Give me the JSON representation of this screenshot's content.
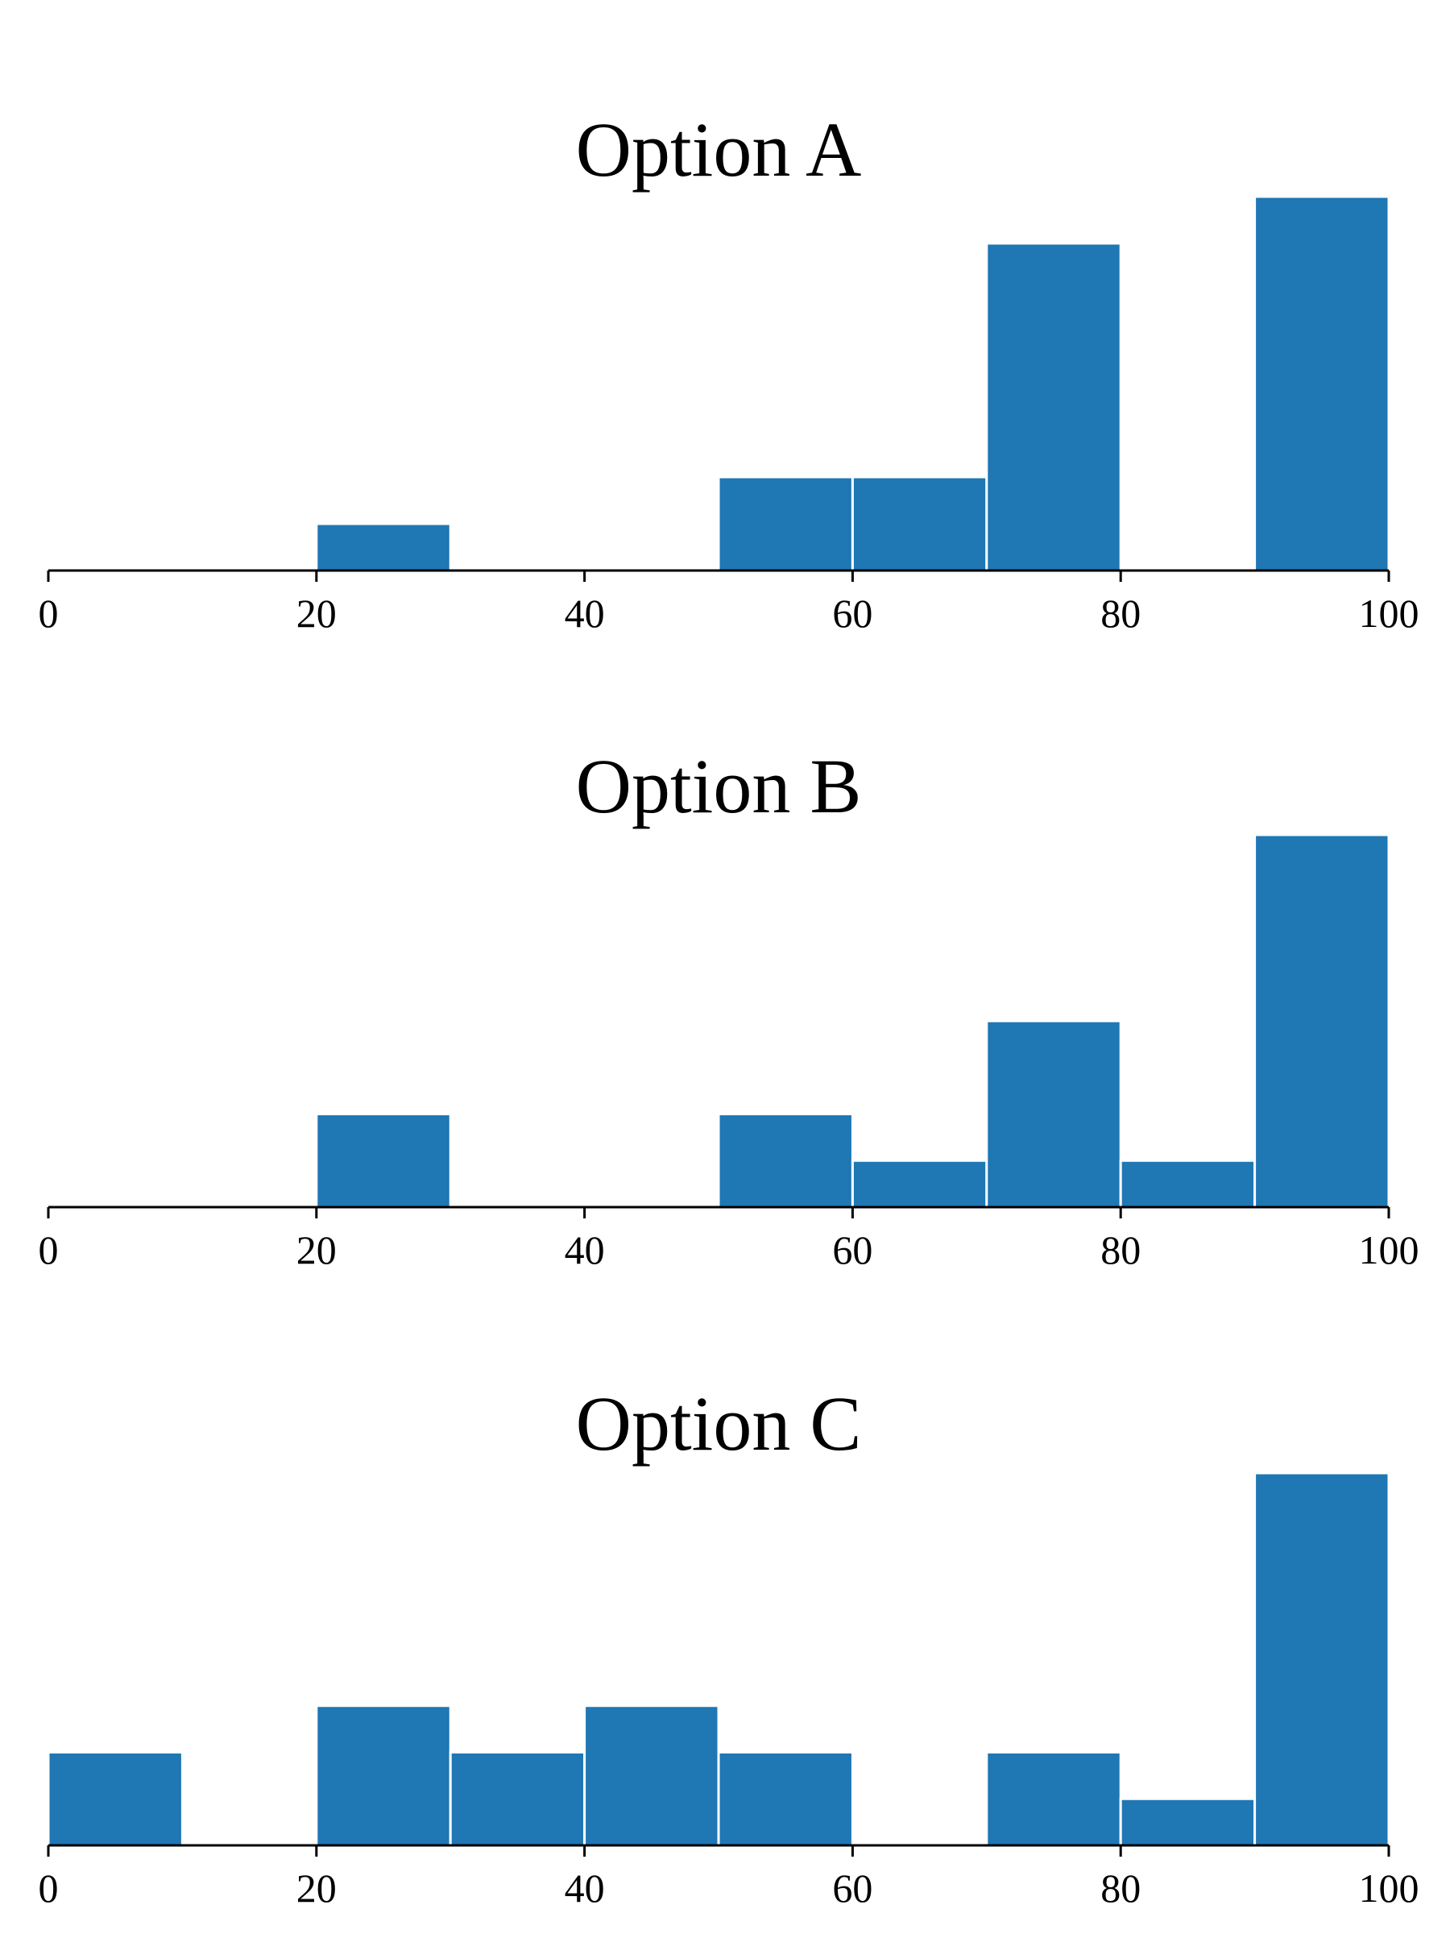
{
  "chart_data": [
    {
      "type": "bar",
      "title": "Option A",
      "xlim": [
        0,
        100
      ],
      "xticks": [
        "0",
        "20",
        "40",
        "60",
        "80",
        "100"
      ],
      "bins": [
        [
          0,
          10
        ],
        [
          10,
          20
        ],
        [
          20,
          30
        ],
        [
          30,
          40
        ],
        [
          40,
          50
        ],
        [
          50,
          60
        ],
        [
          60,
          70
        ],
        [
          70,
          80
        ],
        [
          80,
          90
        ],
        [
          90,
          100
        ]
      ],
      "values": [
        0,
        0,
        1,
        0,
        0,
        2,
        2,
        7,
        0,
        8
      ],
      "color": "#1f77b4",
      "grid": false,
      "yaxis_visible": false
    },
    {
      "type": "bar",
      "title": "Option B",
      "xlim": [
        0,
        100
      ],
      "xticks": [
        "0",
        "20",
        "40",
        "60",
        "80",
        "100"
      ],
      "bins": [
        [
          0,
          10
        ],
        [
          10,
          20
        ],
        [
          20,
          30
        ],
        [
          30,
          40
        ],
        [
          40,
          50
        ],
        [
          50,
          60
        ],
        [
          60,
          70
        ],
        [
          70,
          80
        ],
        [
          80,
          90
        ],
        [
          90,
          100
        ]
      ],
      "values": [
        0,
        0,
        2,
        0,
        0,
        2,
        1,
        4,
        1,
        8
      ],
      "color": "#1f77b4",
      "grid": false,
      "yaxis_visible": false
    },
    {
      "type": "bar",
      "title": "Option C",
      "xlim": [
        0,
        100
      ],
      "xticks": [
        "0",
        "20",
        "40",
        "60",
        "80",
        "100"
      ],
      "bins": [
        [
          0,
          10
        ],
        [
          10,
          20
        ],
        [
          20,
          30
        ],
        [
          30,
          40
        ],
        [
          40,
          50
        ],
        [
          50,
          60
        ],
        [
          60,
          70
        ],
        [
          70,
          80
        ],
        [
          80,
          90
        ],
        [
          90,
          100
        ]
      ],
      "values": [
        2,
        0,
        3,
        2,
        3,
        2,
        0,
        2,
        1,
        8
      ],
      "color": "#1f77b4",
      "grid": false,
      "yaxis_visible": false
    }
  ]
}
